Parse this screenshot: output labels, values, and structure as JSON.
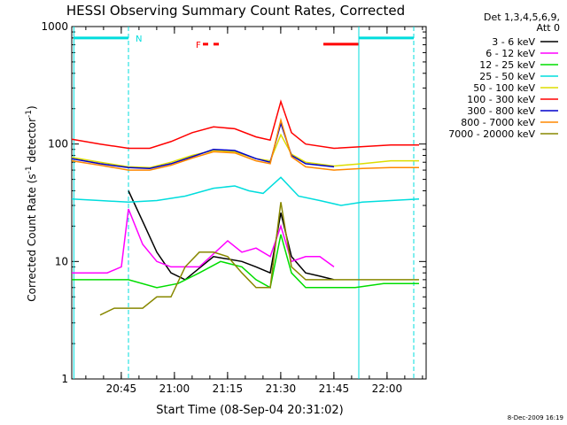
{
  "chart_data": {
    "type": "line",
    "title": "HESSI Observing Summary Count Rates, Corrected",
    "xlabel": "Start Time (08-Sep-04 20:31:02)",
    "ylabel_main": "Corrected Count Rate (s",
    "ylabel_sup1": "-1",
    "ylabel_mid": " detector",
    "ylabel_sup2": "-1",
    "ylabel_end": ")",
    "yscale": "log",
    "ylim": [
      1,
      1000
    ],
    "xlim_minutes": [
      0,
      100
    ],
    "x_ticks": [
      "20:45",
      "21:00",
      "21:15",
      "21:30",
      "21:45",
      "22:00"
    ],
    "x_tick_minutes": [
      13.97,
      28.97,
      43.97,
      58.97,
      73.97,
      88.97
    ],
    "y_ticks": [
      "1",
      "10",
      "100",
      "1000"
    ],
    "y_tick_values": [
      1,
      10,
      100,
      1000
    ],
    "legend_header": [
      "Det 1,3,4,5,6,9,",
      "Att 0"
    ],
    "legend_placement": "right",
    "timestamp": "8-Dec-2009 16:19",
    "flag_labels": [
      "N",
      "F"
    ],
    "series": [
      {
        "name": "3 - 6 keV",
        "color": "#000000",
        "x": [
          0,
          14.5,
          16,
          20,
          24,
          28,
          32,
          40,
          48,
          52,
          56,
          59,
          62,
          66,
          70,
          74,
          76
        ],
        "y": [
          null,
          null,
          40,
          22,
          12,
          8,
          7,
          11,
          10,
          9,
          8,
          26,
          11,
          8,
          7.5,
          7,
          null
        ]
      },
      {
        "name": "6 - 12 keV",
        "color": "#ff00ff",
        "x": [
          0,
          10,
          14,
          16,
          20,
          24,
          28,
          36,
          44,
          48,
          52,
          56,
          59,
          62,
          66,
          70,
          74,
          76
        ],
        "y": [
          8,
          8,
          9,
          28,
          14,
          10,
          9,
          9,
          15,
          12,
          13,
          11,
          20,
          10,
          11,
          11,
          9,
          null
        ]
      },
      {
        "name": "12 - 25 keV",
        "color": "#00dd00",
        "x": [
          0,
          8,
          16,
          24,
          30,
          36,
          42,
          48,
          52,
          56,
          59,
          62,
          66,
          72,
          80,
          88,
          98
        ],
        "y": [
          7,
          7,
          7,
          6,
          6.5,
          8,
          10,
          9,
          7,
          6,
          17,
          8,
          6,
          6,
          6,
          6.5,
          6.5
        ]
      },
      {
        "name": "25 - 50 keV",
        "color": "#00dddd",
        "x": [
          0,
          8,
          16,
          24,
          32,
          40,
          46,
          50,
          54,
          59,
          64,
          70,
          76,
          82,
          90,
          98
        ],
        "y": [
          34,
          33,
          32,
          33,
          36,
          42,
          44,
          40,
          38,
          52,
          36,
          33,
          30,
          32,
          33,
          34
        ]
      },
      {
        "name": "50 - 100 keV",
        "color": "#dddd00",
        "x": [
          0,
          8,
          16,
          22,
          28,
          34,
          40,
          46,
          52,
          56,
          59,
          62,
          66,
          74,
          82,
          90,
          98
        ],
        "y": [
          77,
          70,
          64,
          63,
          70,
          80,
          88,
          86,
          75,
          72,
          120,
          82,
          70,
          65,
          68,
          72,
          72
        ]
      },
      {
        "name": "100 - 300 keV",
        "color": "#ff0000",
        "x": [
          0,
          8,
          16,
          22,
          28,
          34,
          40,
          46,
          52,
          56,
          59,
          62,
          66,
          74,
          82,
          90,
          98
        ],
        "y": [
          110,
          100,
          92,
          92,
          105,
          125,
          140,
          135,
          115,
          108,
          230,
          125,
          100,
          92,
          95,
          98,
          98
        ]
      },
      {
        "name": "300 - 800 keV",
        "color": "#0000cc",
        "x": [
          0,
          8,
          16,
          22,
          28,
          34,
          40,
          46,
          52,
          56,
          59,
          62,
          66,
          74
        ],
        "y": [
          75,
          68,
          63,
          62,
          68,
          78,
          90,
          88,
          75,
          70,
          150,
          80,
          68,
          64
        ]
      },
      {
        "name": "800 - 7000 keV",
        "color": "#ff8800",
        "x": [
          0,
          8,
          16,
          22,
          28,
          34,
          40,
          46,
          52,
          56,
          59,
          62,
          66,
          74,
          82,
          90,
          98
        ],
        "y": [
          72,
          66,
          60,
          60,
          66,
          76,
          86,
          84,
          72,
          68,
          160,
          78,
          64,
          60,
          62,
          63,
          63
        ]
      },
      {
        "name": "7000 - 20000 keV",
        "color": "#888800",
        "x": [
          8,
          12,
          16,
          20,
          24,
          28,
          32,
          36,
          40,
          44,
          48,
          52,
          56,
          59,
          62,
          66,
          72,
          80,
          86,
          92,
          98
        ],
        "y": [
          3.5,
          4,
          4,
          4,
          5,
          5,
          9,
          12,
          12,
          11,
          8,
          6,
          6,
          32,
          9,
          7,
          7,
          7,
          7,
          7,
          7
        ]
      }
    ]
  }
}
